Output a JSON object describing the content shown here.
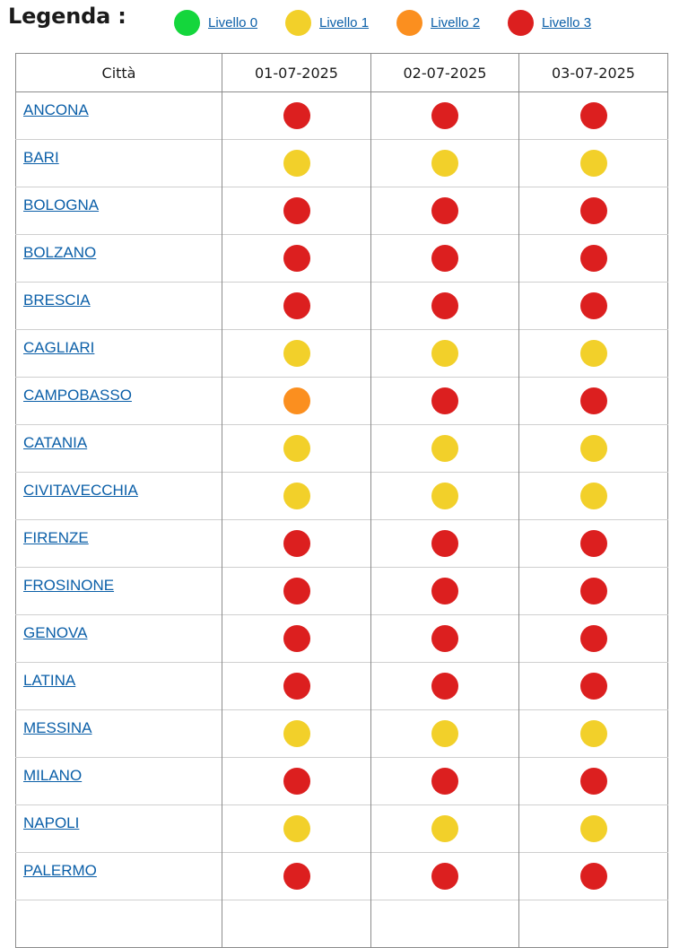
{
  "legend": {
    "title": "Legenda :",
    "items": [
      {
        "label": "Livello 0",
        "level": 0
      },
      {
        "label": "Livello 1",
        "level": 1
      },
      {
        "label": "Livello 2",
        "level": 2
      },
      {
        "label": "Livello 3",
        "level": 3
      }
    ]
  },
  "level_colors": {
    "0": "#14d63c",
    "1": "#f2d02a",
    "2": "#fb8f1f",
    "3": "#dc1f1f"
  },
  "table": {
    "headers": [
      "Città",
      "01-07-2025",
      "02-07-2025",
      "03-07-2025"
    ],
    "rows": [
      {
        "city": "ANCONA",
        "levels": [
          3,
          3,
          3
        ]
      },
      {
        "city": "BARI",
        "levels": [
          1,
          1,
          1
        ]
      },
      {
        "city": "BOLOGNA",
        "levels": [
          3,
          3,
          3
        ]
      },
      {
        "city": "BOLZANO",
        "levels": [
          3,
          3,
          3
        ]
      },
      {
        "city": "BRESCIA",
        "levels": [
          3,
          3,
          3
        ]
      },
      {
        "city": "CAGLIARI",
        "levels": [
          1,
          1,
          1
        ]
      },
      {
        "city": "CAMPOBASSO",
        "levels": [
          2,
          3,
          3
        ]
      },
      {
        "city": "CATANIA",
        "levels": [
          1,
          1,
          1
        ]
      },
      {
        "city": "CIVITAVECCHIA",
        "levels": [
          1,
          1,
          1
        ]
      },
      {
        "city": "FIRENZE",
        "levels": [
          3,
          3,
          3
        ]
      },
      {
        "city": "FROSINONE",
        "levels": [
          3,
          3,
          3
        ]
      },
      {
        "city": "GENOVA",
        "levels": [
          3,
          3,
          3
        ]
      },
      {
        "city": "LATINA",
        "levels": [
          3,
          3,
          3
        ]
      },
      {
        "city": "MESSINA",
        "levels": [
          1,
          1,
          1
        ]
      },
      {
        "city": "MILANO",
        "levels": [
          3,
          3,
          3
        ]
      },
      {
        "city": "NAPOLI",
        "levels": [
          1,
          1,
          1
        ]
      },
      {
        "city": "PALERMO",
        "levels": [
          3,
          3,
          3
        ]
      }
    ]
  }
}
